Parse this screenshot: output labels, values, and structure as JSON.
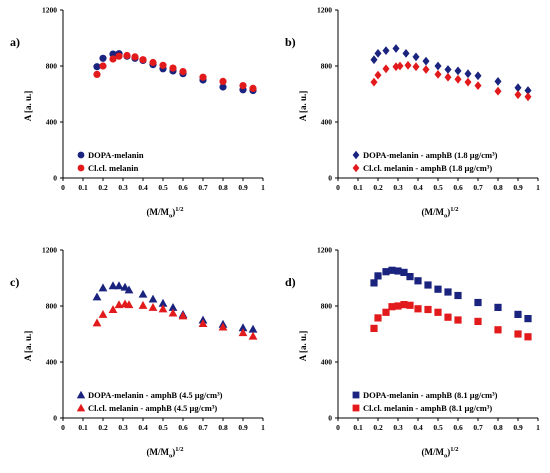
{
  "chart_data": [
    {
      "type": "scatter",
      "panel_label": "a)",
      "xlabel": "(M/M",
      "xlabel_sub": "o",
      "xlabel_sup": "1/2",
      "xlabel_close": ")",
      "ylabel": "A [a. u.]",
      "xlim": [
        0,
        1
      ],
      "ylim": [
        0,
        1200
      ],
      "xticks": [
        {
          "v": 0,
          "t": "0"
        },
        {
          "v": 0.1,
          "t": "0.1"
        },
        {
          "v": 0.2,
          "t": "0.2"
        },
        {
          "v": 0.3,
          "t": "0.3"
        },
        {
          "v": 0.4,
          "t": "0.4"
        },
        {
          "v": 0.5,
          "t": "0.5"
        },
        {
          "v": 0.6,
          "t": "0.6"
        },
        {
          "v": 0.7,
          "t": "0.7"
        },
        {
          "v": 0.8,
          "t": "0.8"
        },
        {
          "v": 0.9,
          "t": "0.9"
        },
        {
          "v": 1,
          "t": "1"
        }
      ],
      "yticks": [
        {
          "v": 0,
          "t": "0"
        },
        {
          "v": 400,
          "t": "400"
        },
        {
          "v": 800,
          "t": "800"
        },
        {
          "v": 1200,
          "t": "1200"
        }
      ],
      "legend_position": "bottom-left",
      "series": [
        {
          "name": "DOPA-melanin",
          "marker": "circle",
          "color": "#1a237e",
          "x": [
            0.17,
            0.2,
            0.25,
            0.28,
            0.32,
            0.36,
            0.4,
            0.45,
            0.5,
            0.55,
            0.6,
            0.7,
            0.8,
            0.9,
            0.95
          ],
          "y": [
            795,
            855,
            885,
            888,
            870,
            855,
            840,
            810,
            780,
            765,
            745,
            700,
            650,
            630,
            625
          ]
        },
        {
          "name": "Cl.cl. melanin",
          "marker": "circle",
          "color": "#e31a1c",
          "x": [
            0.17,
            0.2,
            0.25,
            0.28,
            0.32,
            0.36,
            0.4,
            0.45,
            0.5,
            0.55,
            0.6,
            0.7,
            0.8,
            0.9,
            0.95
          ],
          "y": [
            740,
            800,
            850,
            870,
            875,
            865,
            845,
            825,
            805,
            785,
            760,
            720,
            690,
            660,
            640
          ]
        }
      ]
    },
    {
      "type": "scatter",
      "panel_label": "b)",
      "xlabel": "(M/M",
      "xlabel_sub": "o",
      "xlabel_sup": "1/2",
      "xlabel_close": ")",
      "ylabel": "A [a. u.]",
      "xlim": [
        0,
        1
      ],
      "ylim": [
        0,
        1200
      ],
      "xticks": [
        {
          "v": 0,
          "t": "0"
        },
        {
          "v": 0.1,
          "t": "0.1"
        },
        {
          "v": 0.2,
          "t": "0.2"
        },
        {
          "v": 0.3,
          "t": "0.3"
        },
        {
          "v": 0.4,
          "t": "0.4"
        },
        {
          "v": 0.5,
          "t": "0.5"
        },
        {
          "v": 0.6,
          "t": "0.6"
        },
        {
          "v": 0.7,
          "t": "0.7"
        },
        {
          "v": 0.8,
          "t": "0.8"
        },
        {
          "v": 0.9,
          "t": "0.9"
        },
        {
          "v": 1,
          "t": "1"
        }
      ],
      "yticks": [
        {
          "v": 0,
          "t": "0"
        },
        {
          "v": 400,
          "t": "400"
        },
        {
          "v": 800,
          "t": "800"
        },
        {
          "v": 1200,
          "t": "1200"
        }
      ],
      "legend_position": "bottom-left",
      "series": [
        {
          "name": "DOPA-melanin - amphB (1.8 μg/cm³)",
          "marker": "diamond",
          "color": "#1a237e",
          "x": [
            0.18,
            0.2,
            0.24,
            0.29,
            0.34,
            0.39,
            0.44,
            0.5,
            0.55,
            0.6,
            0.65,
            0.7,
            0.8,
            0.9,
            0.95
          ],
          "y": [
            845,
            890,
            910,
            925,
            890,
            865,
            835,
            800,
            775,
            765,
            745,
            730,
            690,
            645,
            625
          ]
        },
        {
          "name": "Cl.cl. melanin - amphB (1.8 μg/cm³)",
          "marker": "diamond",
          "color": "#e31a1c",
          "x": [
            0.18,
            0.2,
            0.24,
            0.29,
            0.31,
            0.35,
            0.39,
            0.44,
            0.5,
            0.55,
            0.6,
            0.65,
            0.7,
            0.8,
            0.9,
            0.95
          ],
          "y": [
            685,
            735,
            780,
            795,
            800,
            805,
            795,
            775,
            740,
            720,
            705,
            685,
            660,
            620,
            595,
            580
          ]
        }
      ]
    },
    {
      "type": "scatter",
      "panel_label": "c)",
      "xlabel": "(M/M",
      "xlabel_sub": "o",
      "xlabel_sup": "1/2",
      "xlabel_close": ")",
      "ylabel": "A [a. u.]",
      "xlim": [
        0,
        1
      ],
      "ylim": [
        0,
        1200
      ],
      "xticks": [
        {
          "v": 0,
          "t": "0"
        },
        {
          "v": 0.1,
          "t": "0.1"
        },
        {
          "v": 0.2,
          "t": "0.2"
        },
        {
          "v": 0.3,
          "t": "0.3"
        },
        {
          "v": 0.4,
          "t": "0.4"
        },
        {
          "v": 0.5,
          "t": "0.5"
        },
        {
          "v": 0.6,
          "t": "0.6"
        },
        {
          "v": 0.7,
          "t": "0.7"
        },
        {
          "v": 0.8,
          "t": "0.8"
        },
        {
          "v": 0.9,
          "t": "0.9"
        },
        {
          "v": 1,
          "t": "1"
        }
      ],
      "yticks": [
        {
          "v": 0,
          "t": "0"
        },
        {
          "v": 400,
          "t": "400"
        },
        {
          "v": 800,
          "t": "800"
        },
        {
          "v": 1200,
          "t": "1200"
        }
      ],
      "legend_position": "bottom-left",
      "series": [
        {
          "name": "DOPA-melanin - amphB (4.5 μg/cm³)",
          "marker": "triangle",
          "color": "#1a237e",
          "x": [
            0.17,
            0.2,
            0.25,
            0.28,
            0.31,
            0.33,
            0.4,
            0.45,
            0.5,
            0.55,
            0.6,
            0.7,
            0.8,
            0.9,
            0.95
          ],
          "y": [
            865,
            930,
            945,
            945,
            935,
            915,
            885,
            850,
            820,
            790,
            740,
            700,
            670,
            645,
            635
          ]
        },
        {
          "name": "Cl.cl. melanin - amphB (4.5 μg/cm³)",
          "marker": "triangle",
          "color": "#e31a1c",
          "x": [
            0.17,
            0.2,
            0.25,
            0.28,
            0.31,
            0.33,
            0.4,
            0.45,
            0.5,
            0.55,
            0.6,
            0.7,
            0.8,
            0.9,
            0.95
          ],
          "y": [
            680,
            740,
            775,
            810,
            815,
            810,
            805,
            790,
            780,
            750,
            730,
            675,
            650,
            610,
            585
          ]
        }
      ]
    },
    {
      "type": "scatter",
      "panel_label": "d)",
      "xlabel": "(M/M",
      "xlabel_sub": "o",
      "xlabel_sup": "1/2",
      "xlabel_close": ")",
      "ylabel": "A [a. u.]",
      "xlim": [
        0,
        1
      ],
      "ylim": [
        0,
        1200
      ],
      "xticks": [
        {
          "v": 0,
          "t": "0"
        },
        {
          "v": 0.1,
          "t": "0.1"
        },
        {
          "v": 0.2,
          "t": "0.2"
        },
        {
          "v": 0.3,
          "t": "0.3"
        },
        {
          "v": 0.4,
          "t": "0.4"
        },
        {
          "v": 0.5,
          "t": "0.5"
        },
        {
          "v": 0.6,
          "t": "0.6"
        },
        {
          "v": 0.7,
          "t": "0.7"
        },
        {
          "v": 0.8,
          "t": "0.8"
        },
        {
          "v": 0.9,
          "t": "0.9"
        },
        {
          "v": 1,
          "t": "1"
        }
      ],
      "yticks": [
        {
          "v": 0,
          "t": "0"
        },
        {
          "v": 400,
          "t": "400"
        },
        {
          "v": 800,
          "t": "800"
        },
        {
          "v": 1200,
          "t": "1200"
        }
      ],
      "legend_position": "bottom-left",
      "series": [
        {
          "name": "DOPA-melanin - amphB (8.1 μg/cm³)",
          "marker": "square",
          "color": "#1a237e",
          "x": [
            0.18,
            0.2,
            0.24,
            0.27,
            0.3,
            0.33,
            0.36,
            0.4,
            0.45,
            0.5,
            0.55,
            0.6,
            0.7,
            0.8,
            0.9,
            0.95
          ],
          "y": [
            965,
            1015,
            1045,
            1055,
            1050,
            1040,
            1010,
            980,
            950,
            920,
            900,
            875,
            825,
            790,
            740,
            710
          ]
        },
        {
          "name": "Cl.cl. melanin - amphB (8.1 μg/cm³)",
          "marker": "square",
          "color": "#e31a1c",
          "x": [
            0.18,
            0.2,
            0.24,
            0.27,
            0.3,
            0.33,
            0.36,
            0.4,
            0.45,
            0.5,
            0.55,
            0.6,
            0.7,
            0.8,
            0.9,
            0.95
          ],
          "y": [
            640,
            715,
            755,
            795,
            800,
            810,
            805,
            780,
            775,
            755,
            720,
            700,
            690,
            630,
            600,
            580
          ]
        }
      ]
    }
  ]
}
